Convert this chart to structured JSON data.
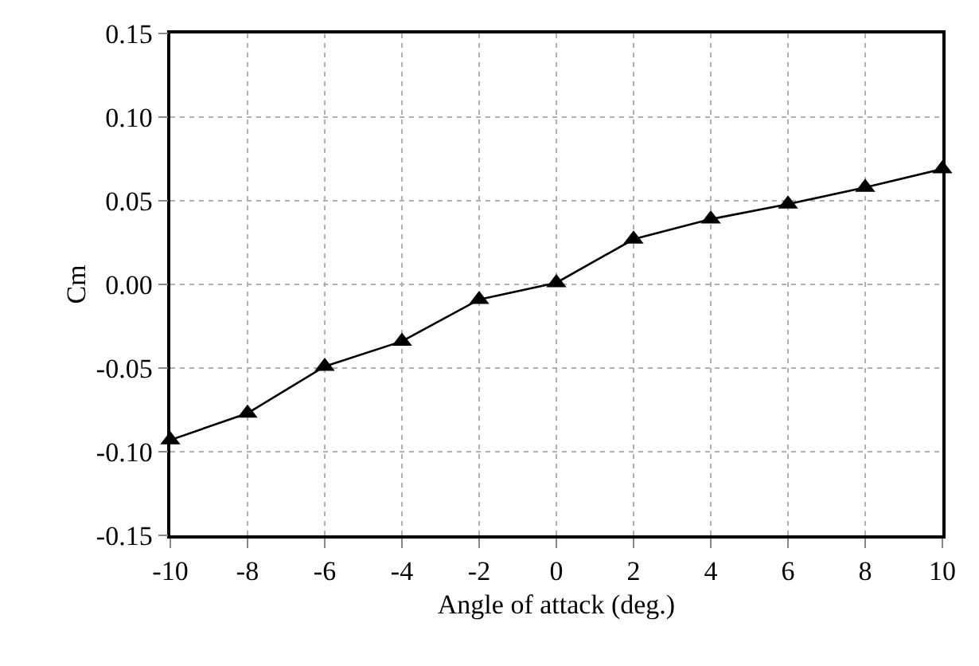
{
  "chart_data": {
    "type": "line",
    "xlabel": "Angle of attack (deg.)",
    "ylabel": "Cm",
    "x": [
      -10,
      -8,
      -6,
      -4,
      -2,
      0,
      2,
      4,
      6,
      8,
      10
    ],
    "series": [
      {
        "color": "#000000",
        "values": [
          -0.093,
          -0.077,
          -0.049,
          -0.034,
          -0.009,
          0.001,
          0.027,
          0.039,
          0.048,
          0.058,
          0.069
        ]
      }
    ],
    "xlim": [
      -10,
      10
    ],
    "xticks": [
      -10,
      -8,
      -6,
      -4,
      -2,
      0,
      2,
      4,
      6,
      8,
      10
    ],
    "ylim": [
      -0.15,
      0.15
    ],
    "yticks": [
      {
        "value": -0.15,
        "label": "-0.15"
      },
      {
        "value": -0.1,
        "label": "-0.10"
      },
      {
        "value": -0.05,
        "label": "-0.05"
      },
      {
        "value": 0,
        "label": "0.00"
      },
      {
        "value": 0.05,
        "label": "0.05"
      },
      {
        "value": 0.1,
        "label": "0.10"
      },
      {
        "value": 0.15,
        "label": "0.15"
      }
    ],
    "grid": true,
    "marker": "triangle",
    "line_style": "solid"
  }
}
